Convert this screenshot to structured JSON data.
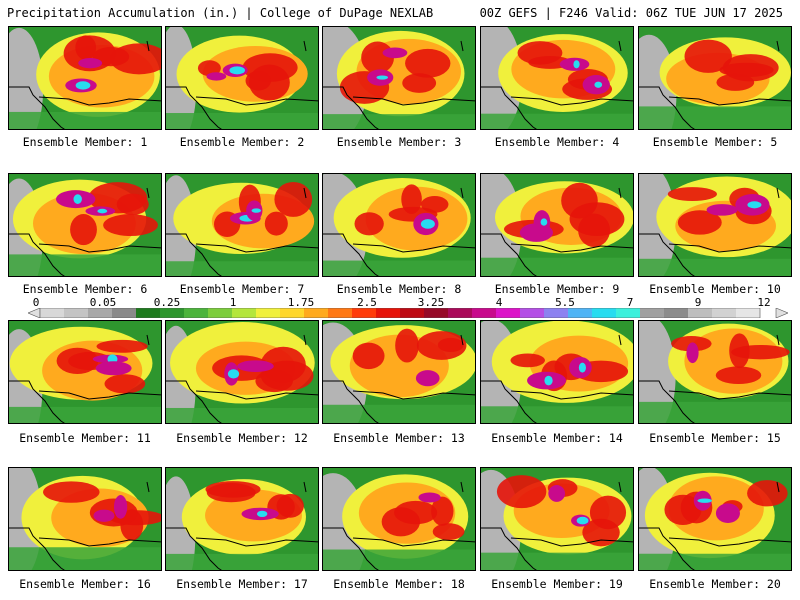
{
  "header": {
    "title_left": "Precipitation Accumulation (in.) | College of DuPage NEXLAB",
    "title_right": "00Z GEFS | F246 Valid: 06Z TUE JUN 17 2025"
  },
  "panels": [
    {
      "caption": "Ensemble Member: 1",
      "seed": 1
    },
    {
      "caption": "Ensemble Member: 2",
      "seed": 2
    },
    {
      "caption": "Ensemble Member: 3",
      "seed": 3
    },
    {
      "caption": "Ensemble Member: 4",
      "seed": 4
    },
    {
      "caption": "Ensemble Member: 5",
      "seed": 5
    },
    {
      "caption": "Ensemble Member: 6",
      "seed": 6
    },
    {
      "caption": "Ensemble Member: 7",
      "seed": 7
    },
    {
      "caption": "Ensemble Member: 8",
      "seed": 8
    },
    {
      "caption": "Ensemble Member: 9",
      "seed": 9
    },
    {
      "caption": "Ensemble Member: 10",
      "seed": 10
    },
    {
      "caption": "Ensemble Member: 11",
      "seed": 11
    },
    {
      "caption": "Ensemble Member: 12",
      "seed": 12
    },
    {
      "caption": "Ensemble Member: 13",
      "seed": 13
    },
    {
      "caption": "Ensemble Member: 14",
      "seed": 14
    },
    {
      "caption": "Ensemble Member: 15",
      "seed": 15
    },
    {
      "caption": "Ensemble Member: 16",
      "seed": 16
    },
    {
      "caption": "Ensemble Member: 17",
      "seed": 17
    },
    {
      "caption": "Ensemble Member: 18",
      "seed": 18
    },
    {
      "caption": "Ensemble Member: 19",
      "seed": 19
    },
    {
      "caption": "Ensemble Member: 20",
      "seed": 20
    }
  ],
  "colorbar": {
    "labels": [
      "0",
      "0.05",
      "0.25",
      "1",
      "1.75",
      "2.5",
      "3.25",
      "4",
      "5.5",
      "7",
      "9",
      "12"
    ],
    "colors": [
      "#d8d8d8",
      "#c4c4c4",
      "#a8a8a8",
      "#8a8a8a",
      "#1e7a1e",
      "#2e962e",
      "#4cb43c",
      "#7ccd3c",
      "#b4e63c",
      "#f0f03c",
      "#ffd72c",
      "#ffaa1e",
      "#ff7814",
      "#ff3c0a",
      "#e6140a",
      "#be0a14",
      "#960a28",
      "#aa0a5a",
      "#c80a8c",
      "#dc14c8",
      "#b450e6",
      "#8c82f0",
      "#50b4f5",
      "#28dcf0",
      "#3cf0dc",
      "#a0a0a0",
      "#8c8c8c",
      "#bebebe",
      "#d2d2d2",
      "#e6e6e6"
    ]
  }
}
